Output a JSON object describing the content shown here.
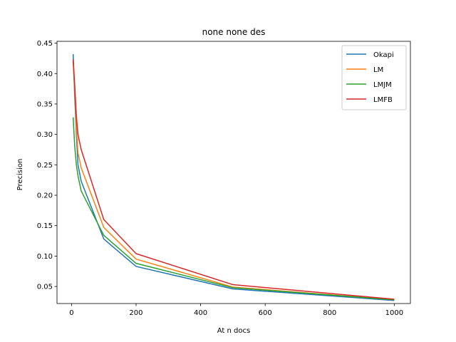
{
  "chart_data": {
    "type": "line",
    "title": "none none des",
    "xlabel": "At n docs",
    "ylabel": "Precision",
    "x": [
      5,
      10,
      15,
      20,
      30,
      100,
      200,
      500,
      1000
    ],
    "xlim": [
      -45,
      1050
    ],
    "ylim": [
      0.022,
      0.453
    ],
    "xticks": [
      0,
      200,
      400,
      600,
      800,
      1000
    ],
    "yticks": [
      0.05,
      0.1,
      0.15,
      0.2,
      0.25,
      0.3,
      0.35,
      0.4,
      0.45
    ],
    "ytick_labels": [
      "0.05",
      "0.10",
      "0.15",
      "0.20",
      "0.25",
      "0.30",
      "0.35",
      "0.40",
      "0.45"
    ],
    "grid": false,
    "legend_position": "top-right",
    "series": [
      {
        "name": "Okapi",
        "color": "#1f77b4",
        "values": [
          0.432,
          0.36,
          0.3,
          0.25,
          0.223,
          0.128,
          0.083,
          0.046,
          0.027
        ]
      },
      {
        "name": "LM",
        "color": "#ff7f0e",
        "values": [
          0.42,
          0.37,
          0.31,
          0.27,
          0.245,
          0.147,
          0.095,
          0.049,
          0.028
        ]
      },
      {
        "name": "LMJM",
        "color": "#2ca02c",
        "values": [
          0.328,
          0.28,
          0.25,
          0.232,
          0.207,
          0.134,
          0.088,
          0.048,
          0.028
        ]
      },
      {
        "name": "LMFB",
        "color": "#d62728",
        "values": [
          0.424,
          0.38,
          0.33,
          0.3,
          0.275,
          0.16,
          0.104,
          0.053,
          0.029
        ]
      }
    ]
  }
}
